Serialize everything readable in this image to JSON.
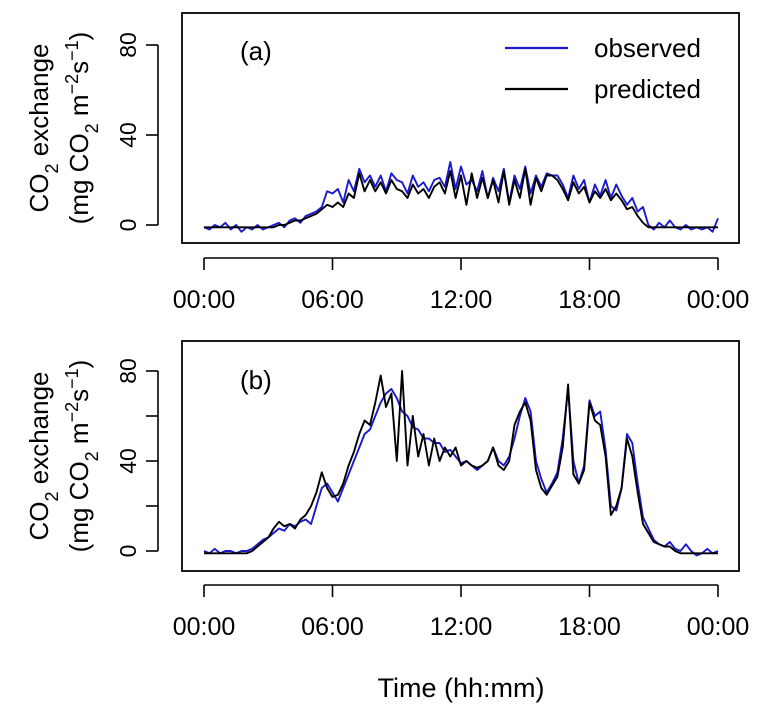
{
  "chart_data": [
    {
      "panel": "(a)",
      "type": "line",
      "ylabel_line1": "CO2 exchange",
      "ylabel_line2": "(mg CO2 m−2s−1)",
      "xlim": [
        0,
        24
      ],
      "ylim": [
        -8,
        93
      ],
      "xticks": [
        "00:00",
        "06:00",
        "12:00",
        "18:00",
        "00:00"
      ],
      "yticks": [
        0,
        40,
        80
      ],
      "legend": {
        "placement": "top-right"
      },
      "series": [
        {
          "name": "observed",
          "color": "#1a1acc",
          "x": [
            0.0,
            0.25,
            0.5,
            0.75,
            1.0,
            1.25,
            1.5,
            1.75,
            2.0,
            2.25,
            2.5,
            2.75,
            3.0,
            3.25,
            3.5,
            3.75,
            4.0,
            4.25,
            4.5,
            4.75,
            5.0,
            5.25,
            5.5,
            5.75,
            6.0,
            6.25,
            6.5,
            6.75,
            7.0,
            7.25,
            7.5,
            7.75,
            8.0,
            8.25,
            8.5,
            8.75,
            9.0,
            9.25,
            9.5,
            9.75,
            10.0,
            10.25,
            10.5,
            10.75,
            11.0,
            11.25,
            11.5,
            11.75,
            12.0,
            12.25,
            12.5,
            12.75,
            13.0,
            13.25,
            13.5,
            13.75,
            14.0,
            14.25,
            14.5,
            14.75,
            15.0,
            15.25,
            15.5,
            15.75,
            16.0,
            16.25,
            16.5,
            16.75,
            17.0,
            17.25,
            17.5,
            17.75,
            18.0,
            18.25,
            18.5,
            18.75,
            19.0,
            19.25,
            19.5,
            19.75,
            20.0,
            20.25,
            20.5,
            20.75,
            21.0,
            21.25,
            21.5,
            21.75,
            22.0,
            22.25,
            22.5,
            22.75,
            23.0,
            23.25,
            23.5,
            23.75,
            24.0
          ],
          "y": [
            -1,
            -2,
            0,
            -1,
            1,
            -2,
            0,
            -3,
            -1,
            -2,
            0,
            -2,
            -1,
            0,
            1,
            -1,
            2,
            3,
            1,
            4,
            5,
            6,
            8,
            15,
            14,
            16,
            10,
            20,
            15,
            25,
            19,
            22,
            17,
            22,
            15,
            23,
            20,
            19,
            14,
            22,
            17,
            19,
            15,
            20,
            21,
            17,
            28,
            16,
            26,
            18,
            20,
            15,
            24,
            12,
            21,
            15,
            25,
            10,
            22,
            16,
            26,
            14,
            22,
            17,
            23,
            22,
            22,
            18,
            12,
            22,
            16,
            20,
            10,
            18,
            13,
            20,
            12,
            18,
            13,
            9,
            12,
            6,
            8,
            0,
            -2,
            1,
            -1,
            2,
            -1,
            -2,
            0,
            -2,
            -1,
            -2,
            -1,
            -3,
            3
          ]
        },
        {
          "name": "predicted",
          "color": "#000000",
          "x": [
            0.0,
            0.25,
            0.5,
            0.75,
            1.0,
            1.25,
            1.5,
            1.75,
            2.0,
            2.25,
            2.5,
            2.75,
            3.0,
            3.25,
            3.5,
            3.75,
            4.0,
            4.25,
            4.5,
            4.75,
            5.0,
            5.25,
            5.5,
            5.75,
            6.0,
            6.25,
            6.5,
            6.75,
            7.0,
            7.25,
            7.5,
            7.75,
            8.0,
            8.25,
            8.5,
            8.75,
            9.0,
            9.25,
            9.5,
            9.75,
            10.0,
            10.25,
            10.5,
            10.75,
            11.0,
            11.25,
            11.5,
            11.75,
            12.0,
            12.25,
            12.5,
            12.75,
            13.0,
            13.25,
            13.5,
            13.75,
            14.0,
            14.25,
            14.5,
            14.75,
            15.0,
            15.25,
            15.5,
            15.75,
            16.0,
            16.25,
            16.5,
            16.75,
            17.0,
            17.25,
            17.5,
            17.75,
            18.0,
            18.25,
            18.5,
            18.75,
            19.0,
            19.25,
            19.5,
            19.75,
            20.0,
            20.25,
            20.5,
            20.75,
            21.0,
            21.25,
            21.5,
            21.75,
            22.0,
            22.25,
            22.5,
            22.75,
            23.0,
            23.25,
            23.5,
            23.75,
            24.0
          ],
          "y": [
            -1,
            -1,
            -1,
            -1,
            -1,
            -1,
            -1,
            -1,
            -1,
            -1,
            -1,
            -1,
            -1,
            -1,
            0,
            0,
            1,
            2,
            2,
            3,
            4,
            5,
            7,
            9,
            8,
            10,
            8,
            14,
            12,
            23,
            15,
            20,
            15,
            19,
            14,
            20,
            16,
            15,
            12,
            18,
            14,
            16,
            12,
            17,
            19,
            14,
            24,
            12,
            22,
            9,
            23,
            12,
            21,
            12,
            20,
            10,
            24,
            9,
            20,
            12,
            25,
            9,
            21,
            15,
            22,
            22,
            20,
            16,
            11,
            19,
            14,
            17,
            10,
            15,
            12,
            16,
            11,
            14,
            11,
            7,
            8,
            4,
            1,
            -1,
            -1,
            -1,
            -1,
            -1,
            -1,
            -1,
            -1,
            -1,
            -1,
            -1,
            -1,
            -1,
            -1
          ]
        }
      ]
    },
    {
      "panel": "(b)",
      "type": "line",
      "ylabel_line1": "CO2 exchange",
      "ylabel_line2": "(mg CO2 m−2s−1)",
      "xlim": [
        0,
        24
      ],
      "ylim": [
        -8,
        93
      ],
      "xticks": [
        "00:00",
        "06:00",
        "12:00",
        "18:00",
        "00:00"
      ],
      "yticks": [
        0,
        20,
        40,
        60,
        80
      ],
      "ytick_labels_shown": [
        0,
        40,
        80
      ],
      "series": [
        {
          "name": "observed",
          "color": "#1a1acc",
          "x": [
            0.0,
            0.25,
            0.5,
            0.75,
            1.0,
            1.25,
            1.5,
            1.75,
            2.0,
            2.25,
            2.5,
            2.75,
            3.0,
            3.25,
            3.5,
            3.75,
            4.0,
            4.25,
            4.5,
            4.75,
            5.0,
            5.25,
            5.5,
            5.75,
            6.0,
            6.25,
            6.5,
            6.75,
            7.0,
            7.25,
            7.5,
            7.75,
            8.0,
            8.25,
            8.5,
            8.75,
            9.0,
            9.25,
            9.5,
            9.75,
            10.0,
            10.25,
            10.5,
            10.75,
            11.0,
            11.25,
            11.5,
            11.75,
            12.0,
            12.25,
            12.5,
            12.75,
            13.0,
            13.25,
            13.5,
            13.75,
            14.0,
            14.25,
            14.5,
            14.75,
            15.0,
            15.25,
            15.5,
            15.75,
            16.0,
            16.25,
            16.5,
            16.75,
            17.0,
            17.25,
            17.5,
            17.75,
            18.0,
            18.25,
            18.5,
            18.75,
            19.0,
            19.25,
            19.5,
            19.75,
            20.0,
            20.25,
            20.5,
            20.75,
            21.0,
            21.25,
            21.5,
            21.75,
            22.0,
            22.25,
            22.5,
            22.75,
            23.0,
            23.25,
            23.5,
            23.75,
            24.0
          ],
          "y": [
            0,
            -1,
            1,
            -1,
            0,
            0,
            -1,
            0,
            0,
            1,
            3,
            5,
            6,
            8,
            10,
            9,
            12,
            11,
            13,
            14,
            12,
            20,
            28,
            30,
            26,
            22,
            28,
            34,
            40,
            46,
            52,
            54,
            60,
            66,
            70,
            72,
            68,
            62,
            60,
            55,
            54,
            50,
            50,
            48,
            48,
            44,
            45,
            42,
            39,
            40,
            38,
            36,
            38,
            40,
            46,
            40,
            38,
            42,
            50,
            60,
            68,
            62,
            40,
            32,
            26,
            30,
            35,
            50,
            72,
            40,
            30,
            38,
            67,
            60,
            62,
            45,
            20,
            18,
            28,
            52,
            48,
            30,
            15,
            10,
            5,
            3,
            2,
            4,
            1,
            0,
            3,
            0,
            -2,
            -1,
            1,
            -1,
            0
          ]
        },
        {
          "name": "predicted",
          "color": "#000000",
          "x": [
            0.0,
            0.25,
            0.5,
            0.75,
            1.0,
            1.25,
            1.5,
            1.75,
            2.0,
            2.25,
            2.5,
            2.75,
            3.0,
            3.25,
            3.5,
            3.75,
            4.0,
            4.25,
            4.5,
            4.75,
            5.0,
            5.25,
            5.5,
            5.75,
            6.0,
            6.25,
            6.5,
            6.75,
            7.0,
            7.25,
            7.5,
            7.75,
            8.0,
            8.25,
            8.5,
            8.75,
            9.0,
            9.25,
            9.5,
            9.75,
            10.0,
            10.25,
            10.5,
            10.75,
            11.0,
            11.25,
            11.5,
            11.75,
            12.0,
            12.25,
            12.5,
            12.75,
            13.0,
            13.25,
            13.5,
            13.75,
            14.0,
            14.25,
            14.5,
            14.75,
            15.0,
            15.25,
            15.5,
            15.75,
            16.0,
            16.25,
            16.5,
            16.75,
            17.0,
            17.25,
            17.5,
            17.75,
            18.0,
            18.25,
            18.5,
            18.75,
            19.0,
            19.25,
            19.5,
            19.75,
            20.0,
            20.25,
            20.5,
            20.75,
            21.0,
            21.25,
            21.5,
            21.75,
            22.0,
            22.25,
            22.5,
            22.75,
            23.0,
            23.25,
            23.5,
            23.75,
            24.0
          ],
          "y": [
            -1,
            -1,
            -1,
            -1,
            -1,
            -1,
            -1,
            -1,
            -1,
            0,
            2,
            4,
            6,
            10,
            13,
            11,
            12,
            10,
            14,
            16,
            20,
            26,
            35,
            28,
            24,
            25,
            30,
            38,
            44,
            52,
            58,
            56,
            66,
            78,
            64,
            70,
            40,
            80,
            38,
            60,
            42,
            52,
            38,
            50,
            40,
            46,
            42,
            46,
            38,
            40,
            38,
            37,
            38,
            40,
            46,
            38,
            36,
            40,
            56,
            62,
            66,
            58,
            36,
            28,
            25,
            29,
            33,
            46,
            74,
            34,
            30,
            36,
            66,
            58,
            56,
            42,
            16,
            20,
            28,
            50,
            42,
            26,
            12,
            8,
            4,
            3,
            2,
            2,
            0,
            -1,
            -1,
            -1,
            -1,
            -1,
            -1,
            -1,
            -1
          ]
        }
      ]
    }
  ],
  "xlabel": "Time (hh:mm)",
  "legend_labels": [
    "observed",
    "predicted"
  ],
  "colors": {
    "observed": "#1a1acc",
    "predicted": "#000000"
  }
}
